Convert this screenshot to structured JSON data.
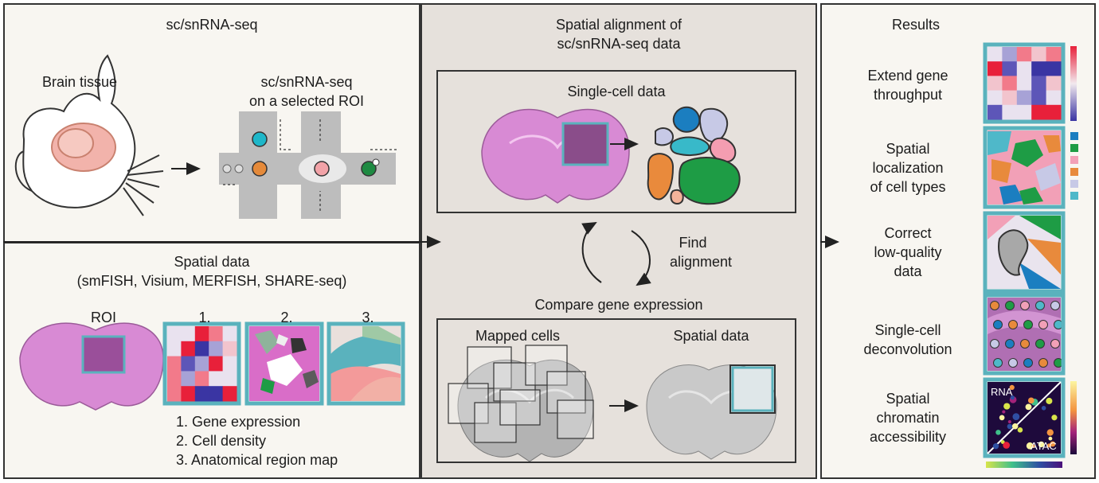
{
  "left_top": {
    "title": "sc/snRNA-seq",
    "brain_tissue": "Brain tissue",
    "roi_line1": "sc/snRNA-seq",
    "roi_line2": "on a selected ROI"
  },
  "left_bottom": {
    "title_line1": "Spatial data",
    "title_line2": "(smFISH, Visium, MERFISH, SHARE-seq)",
    "roi_label": "ROI",
    "panel_numbers": [
      "1.",
      "2.",
      "3."
    ],
    "legend": [
      "1. Gene expression",
      "2. Cell density",
      "3. Anatomical region map"
    ]
  },
  "middle": {
    "title_line1": "Spatial alignment of",
    "title_line2": "sc/snRNA-seq data",
    "single_cell": "Single-cell data",
    "find_line1": "Find",
    "find_line2": "alignment",
    "compare": "Compare gene expression",
    "mapped": "Mapped cells",
    "spatial": "Spatial data"
  },
  "right": {
    "title": "Results",
    "items": [
      {
        "line1": "Extend gene",
        "line2": "throughput",
        "line3": ""
      },
      {
        "line1": "Spatial",
        "line2": "localization",
        "line3": "of cell types"
      },
      {
        "line1": "Correct",
        "line2": "low-quality",
        "line3": "data"
      },
      {
        "line1": "Single-cell",
        "line2": "deconvolution",
        "line3": ""
      },
      {
        "line1": "Spatial",
        "line2": "chromatin",
        "line3": "accessibility"
      }
    ],
    "rna": "RNA",
    "atac": "ATAC"
  },
  "colors": {
    "panel_bg": "#f8f6f1",
    "middle_bg": "#e6e1dc",
    "teal": "#5ab2bd",
    "brain": "#d88ad4",
    "brain_dark": "#b866b4"
  }
}
